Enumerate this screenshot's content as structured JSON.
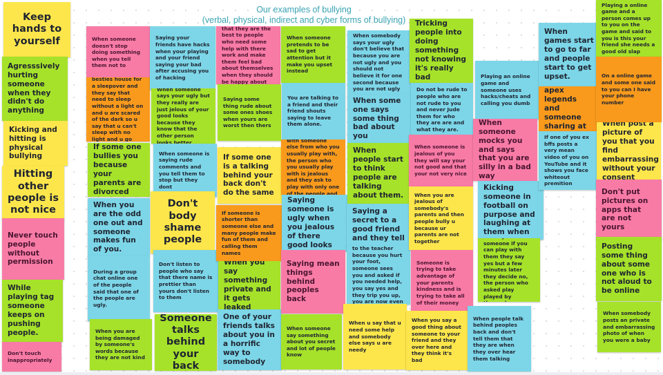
{
  "board": {
    "title": "Our examples of bullying",
    "subtitle": "(verbal, physical, indirect and cyber forms of bullying)",
    "title_color": "#3aa3b3"
  },
  "palette": {
    "yellow": "#fde64b",
    "green": "#a6e22a",
    "pink": "#f87ba6",
    "blue": "#7dd6e8",
    "orange": "#f99a1c"
  },
  "notes": [
    {
      "color": "yellow",
      "text": "Keep hands to yourself"
    },
    {
      "color": "green",
      "text": "Agresssively hurting someone when they didn't do anything"
    },
    {
      "color": "yellow",
      "text": "Kicking and hitting is physical bullying"
    },
    {
      "color": "yellow",
      "text": "Hitting other people is not nice"
    },
    {
      "color": "pink",
      "text": "Never touch people without permission"
    },
    {
      "color": "green",
      "text": "While playing tag someone keeps on pushing people."
    },
    {
      "color": "pink",
      "text": "Don't touch inappropriately"
    },
    {
      "color": "pink",
      "text": "When someone doesn't stop doing something when you tell them not to"
    },
    {
      "color": "orange",
      "text": "When u are at ur besties house for a sleepover and they say that need to sleep without a light on and u are scared of the dark so u say that u can't sleep with no light and u go home"
    },
    {
      "color": "green",
      "text": "If some one bullies you because your parents are divorced"
    },
    {
      "color": "blue",
      "text": "When you are the odd one out and someone makes fun of you."
    },
    {
      "color": "blue",
      "text": "During a group chat online one of the people said that one of the people are ugly."
    },
    {
      "color": "green",
      "text": "When you are being damaged by someone's words because they are not kind"
    },
    {
      "color": "blue",
      "text": "Saying your friends have hacks when your playing and your friend saying your bad after accusing you of hacking"
    },
    {
      "color": "green",
      "text": "When someone says your ugly but they really are just jelous of your good looks because they know that the other person looks better"
    },
    {
      "color": "blue",
      "text": "When someone is saying rude comments and you tell them to stop but they dont"
    },
    {
      "color": "yellow",
      "text": "Don't body shame people"
    },
    {
      "color": "blue",
      "text": "Don't listen to people who say that there  name is prettier than yours don't listen to them"
    },
    {
      "color": "green",
      "text": "Someone talks behind your back"
    },
    {
      "color": "pink",
      "text": "When people say that they are the best to people who need some help with there work and make them feel bad about themselves when they should be happy about who they are"
    },
    {
      "color": "green",
      "text": "Saying some thing rude about some ones shoes when yours are worst then thers"
    },
    {
      "color": "yellow",
      "text": "If some one is a talking behind your back don't do the same"
    },
    {
      "color": "orange",
      "text": "If someone is shorter than someone else and many people make fun of them and calling them names"
    },
    {
      "color": "green",
      "text": "When you say something private and it gets leaked"
    },
    {
      "color": "blue",
      "text": "One of your friends talks about you in a horrific way to somebody"
    },
    {
      "color": "green",
      "text": "When someone pretends to be sad to get attention but it make you upset instead"
    },
    {
      "color": "blue",
      "text": "You are talking to a friend and their friend shouts saying to leave them alone."
    },
    {
      "color": "orange",
      "text": "You are playing with someone else from who you usually play with, the person who you usually play with is jealous and they ask to play with only one of the people  and the"
    },
    {
      "color": "blue",
      "text": "Saying someone is ugly when you jealous of there good looks"
    },
    {
      "color": "pink",
      "text": "Saying mean things behind peoples back"
    },
    {
      "color": "green",
      "text": "When someone say something about you secret and lot of people know"
    },
    {
      "color": "blue",
      "text": "When somebody says your ugly don't believe that because you are not ugly and you should not believe it for one second because you are not ugly"
    },
    {
      "color": "blue",
      "text": "When some one says some thing bad about you"
    },
    {
      "color": "green",
      "text": "When people start to think people are talking about them."
    },
    {
      "color": "blue",
      "text": "Saying a secret to a good friend and they tell"
    },
    {
      "color": "blue",
      "text": "You are walking to the teacher because you hurt your foot, someone sees you and asked if you needed help, you say yes and they trip you up, you are now even more hurt"
    },
    {
      "color": "yellow",
      "text": "When u say that u need some help and somebody else says u are needy"
    },
    {
      "color": "green",
      "text": "Tricking people into doing something not knowing it's really bad"
    },
    {
      "color": "blue",
      "text": "Do not be rude to people who are not rude to you and never Jude them for who they are are and what they are."
    },
    {
      "color": "pink",
      "text": "When someone is jealous of you they will say your not good and that your not very nice"
    },
    {
      "color": "yellow",
      "text": "When you are jealous of somebody's parents and then people bully u because ur parents are not together"
    },
    {
      "color": "pink",
      "text": "Someone is trying to take advantage of your parents kindness and is trying to take all of their money"
    },
    {
      "color": "yellow",
      "text": "When you say a good thing about someone to your friend and they over here and they think it's bad"
    },
    {
      "color": "blue",
      "text": "Playing an online game and someone uses hacks/cheats and calling you dumb"
    },
    {
      "color": "pink",
      "text": "When someone mocks you and says that you are silly in a bad way"
    },
    {
      "color": "blue",
      "text": "Kicking someone in football on purpose and laughing at them when"
    },
    {
      "color": "green",
      "text": "When you ask someone if you can play with them they say yes but a few minutes later they decide no, the person who asked play played by themselves"
    },
    {
      "color": "blue",
      "text": "When people talk behind peoples back and don't tell them that they are when they over hear them talking"
    },
    {
      "color": "blue",
      "text": "When games start to go to far and people start to get upset."
    },
    {
      "color": "orange",
      "text": "Playing apex legends and someone sharing at you"
    },
    {
      "color": "blue",
      "text": "If one of you ex bffs posts a very mean video of you on YouTube and it shows you face whiteout premition"
    },
    {
      "color": "green",
      "text": "Playing a online game and a person comes up to you on the game and said to you is this your friend she needs a good old slap"
    },
    {
      "color": "orange",
      "text": "On a online game and some one said to you can I have your phone number"
    },
    {
      "color": "yellow",
      "text": "When post a picture of you that you find embarrassing without your consent"
    },
    {
      "color": "pink",
      "text": "Don't put pictures on apps that are not yours"
    },
    {
      "color": "green",
      "text": "Posting some thing about some one who is not aloud to be online"
    },
    {
      "color": "green",
      "text": "When somebody posts an private and embarrassing photo of when you were a baby"
    }
  ]
}
